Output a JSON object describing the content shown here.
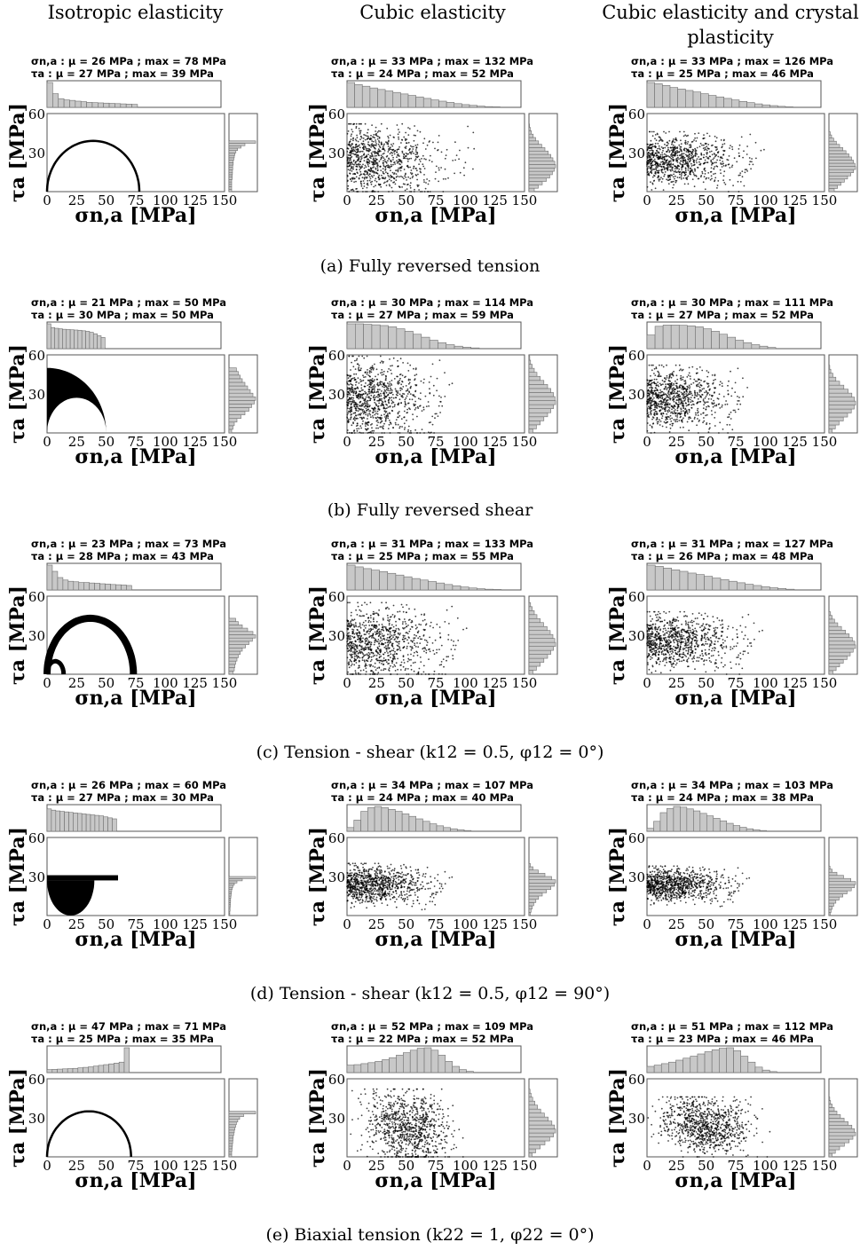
{
  "column_titles": [
    "Isotropic elasticity",
    "Cubic elasticity",
    "Cubic elasticity and crystal plasticity"
  ],
  "captions": [
    "(a) Fully reversed tension",
    "(b) Fully reversed shear",
    "(c) Tension - shear (k12 = 0.5, φ12 = 0°)",
    "(d) Tension - shear (k12 = 0.5, φ12 = 90°)",
    "(e) Biaxial tension (k22 = 1, φ22 = 0°)"
  ],
  "chart_data": [
    {
      "type": "scatter",
      "row": "a",
      "column": "Isotropic elasticity",
      "shape": "arc",
      "xlabel": "σn,a [MPa]",
      "ylabel": "τa [MPa]",
      "xlim": [
        0,
        150
      ],
      "ylim": [
        0,
        60
      ],
      "xticks": [
        0,
        25,
        50,
        75,
        100,
        125,
        150
      ],
      "yticks": [
        30,
        60
      ],
      "stats": {
        "sigma_label": "σn,a : μ = 26 MPa ; max = 78 MPa",
        "tau_label": "τa : μ = 27 MPa ; max = 39 MPa",
        "sigma_mean": 26,
        "sigma_max": 78,
        "tau_mean": 27,
        "tau_max": 39
      },
      "hist_sigma": [
        1.0,
        0.55,
        0.35,
        0.3,
        0.28,
        0.25,
        0.23,
        0.2,
        0.19,
        0.18,
        0.17,
        0.16,
        0.15,
        0.14,
        0.13,
        0.12
      ],
      "hist_tau": [
        0.1,
        0.1,
        0.1,
        0.1,
        0.1,
        0.12,
        0.12,
        0.13,
        0.13,
        0.14,
        0.14,
        0.16,
        0.16,
        0.18,
        0.2,
        0.22,
        0.26,
        0.32,
        0.45,
        0.6,
        1.0
      ]
    },
    {
      "type": "scatter",
      "row": "a",
      "column": "Cubic elasticity",
      "shape": "cloud",
      "xlabel": "σn,a [MPa]",
      "ylabel": "τa [MPa]",
      "xlim": [
        0,
        150
      ],
      "ylim": [
        0,
        60
      ],
      "xticks": [
        0,
        25,
        50,
        75,
        100,
        125,
        150
      ],
      "yticks": [
        30,
        60
      ],
      "stats": {
        "sigma_label": "σn,a : μ = 33 MPa ; max = 132 MPa",
        "tau_label": "τa : μ = 24 MPa ; max = 52 MPa",
        "sigma_mean": 33,
        "sigma_max": 132,
        "tau_mean": 24,
        "tau_max": 52
      },
      "hist_sigma": [
        1.0,
        0.92,
        0.85,
        0.78,
        0.72,
        0.66,
        0.6,
        0.54,
        0.48,
        0.42,
        0.36,
        0.3,
        0.25,
        0.2,
        0.15,
        0.11,
        0.08,
        0.05,
        0.03,
        0.02
      ],
      "hist_tau": [
        0.2,
        0.35,
        0.5,
        0.65,
        0.78,
        0.88,
        0.95,
        1.0,
        0.97,
        0.9,
        0.82,
        0.72,
        0.6,
        0.48,
        0.36,
        0.25,
        0.16,
        0.09,
        0.05,
        0.02
      ]
    },
    {
      "type": "scatter",
      "row": "a",
      "column": "Cubic elasticity and crystal plasticity",
      "shape": "cloud",
      "xlabel": "σn,a [MPa]",
      "ylabel": "τa [MPa]",
      "xlim": [
        0,
        150
      ],
      "ylim": [
        0,
        60
      ],
      "xticks": [
        0,
        25,
        50,
        75,
        100,
        125,
        150
      ],
      "yticks": [
        30,
        60
      ],
      "stats": {
        "sigma_label": "σn,a : μ = 33 MPa ; max = 126 MPa",
        "tau_label": "τa : μ = 25 MPa ; max = 46 MPa",
        "sigma_mean": 33,
        "sigma_max": 126,
        "tau_mean": 25,
        "tau_max": 46
      },
      "hist_sigma": [
        1.0,
        0.95,
        0.88,
        0.8,
        0.74,
        0.68,
        0.62,
        0.55,
        0.48,
        0.42,
        0.36,
        0.3,
        0.24,
        0.19,
        0.14,
        0.1,
        0.07,
        0.04,
        0.02
      ],
      "hist_tau": [
        0.2,
        0.32,
        0.45,
        0.58,
        0.7,
        0.82,
        0.92,
        1.0,
        0.98,
        0.92,
        0.85,
        0.75,
        0.64,
        0.52,
        0.4,
        0.28,
        0.18,
        0.1,
        0.05
      ]
    },
    {
      "type": "scatter",
      "row": "b",
      "column": "Isotropic elasticity",
      "shape": "ring",
      "xlabel": "σn,a [MPa]",
      "ylabel": "τa [MPa]",
      "xlim": [
        0,
        150
      ],
      "ylim": [
        0,
        60
      ],
      "xticks": [
        0,
        25,
        50,
        75,
        100,
        125,
        150
      ],
      "yticks": [
        30,
        60
      ],
      "stats": {
        "sigma_label": "σn,a : μ = 21 MPa ; max = 50 MPa",
        "tau_label": "τa : μ = 30 MPa ; max = 50 MPa",
        "sigma_mean": 21,
        "sigma_max": 50,
        "tau_mean": 30,
        "tau_max": 50
      },
      "hist_sigma": [
        1.0,
        0.85,
        0.82,
        0.8,
        0.78,
        0.77,
        0.76,
        0.75,
        0.74,
        0.72,
        0.7,
        0.66,
        0.6,
        0.52,
        0.45
      ],
      "hist_tau": [
        0.1,
        0.15,
        0.2,
        0.3,
        0.45,
        0.6,
        0.75,
        0.85,
        0.95,
        1.0,
        0.9,
        0.8,
        0.7,
        0.6,
        0.5,
        0.42,
        0.35,
        0.28
      ]
    },
    {
      "type": "scatter",
      "row": "b",
      "column": "Cubic elasticity",
      "shape": "cloud",
      "xlabel": "σn,a [MPa]",
      "ylabel": "τa [MPa]",
      "xlim": [
        0,
        150
      ],
      "ylim": [
        0,
        60
      ],
      "xticks": [
        0,
        25,
        50,
        75,
        100,
        125,
        150
      ],
      "yticks": [
        30,
        60
      ],
      "stats": {
        "sigma_label": "σn,a : μ = 30 MPa ; max = 114 MPa",
        "tau_label": "τa : μ = 27 MPa ; max = 59 MPa",
        "sigma_mean": 30,
        "sigma_max": 114,
        "tau_mean": 27,
        "tau_max": 59
      },
      "hist_sigma": [
        1.0,
        1.0,
        0.98,
        0.96,
        0.93,
        0.88,
        0.8,
        0.7,
        0.58,
        0.46,
        0.34,
        0.24,
        0.16,
        0.1,
        0.06,
        0.03
      ],
      "hist_tau": [
        0.15,
        0.28,
        0.42,
        0.56,
        0.7,
        0.82,
        0.92,
        1.0,
        0.98,
        0.92,
        0.82,
        0.7,
        0.56,
        0.42,
        0.3,
        0.2,
        0.12,
        0.06,
        0.03
      ]
    },
    {
      "type": "scatter",
      "row": "b",
      "column": "Cubic elasticity and crystal plasticity",
      "shape": "cloud",
      "xlabel": "σn,a [MPa]",
      "ylabel": "τa [MPa]",
      "xlim": [
        0,
        150
      ],
      "ylim": [
        0,
        60
      ],
      "xticks": [
        0,
        25,
        50,
        75,
        100,
        125,
        150
      ],
      "yticks": [
        30,
        60
      ],
      "stats": {
        "sigma_label": "σn,a : μ = 30 MPa ; max = 111 MPa",
        "tau_label": "τa : μ = 27 MPa ; max = 52 MPa",
        "sigma_mean": 30,
        "sigma_max": 111,
        "tau_mean": 27,
        "tau_max": 52
      },
      "hist_sigma": [
        0.55,
        0.9,
        0.95,
        0.95,
        0.94,
        0.92,
        0.88,
        0.8,
        0.7,
        0.58,
        0.46,
        0.34,
        0.24,
        0.16,
        0.1,
        0.05
      ],
      "hist_tau": [
        0.12,
        0.24,
        0.38,
        0.54,
        0.7,
        0.84,
        0.95,
        1.0,
        0.96,
        0.86,
        0.72,
        0.56,
        0.4,
        0.26,
        0.15,
        0.07,
        0.03
      ]
    },
    {
      "type": "scatter",
      "row": "c",
      "column": "Isotropic elasticity",
      "shape": "two-arcs",
      "xlabel": "σn,a [MPa]",
      "ylabel": "τa [MPa]",
      "xlim": [
        0,
        150
      ],
      "ylim": [
        0,
        60
      ],
      "xticks": [
        0,
        25,
        50,
        75,
        100,
        125,
        150
      ],
      "yticks": [
        30,
        60
      ],
      "stats": {
        "sigma_label": "σn,a : μ = 23 MPa ; max = 73 MPa",
        "tau_label": "τa : μ = 28 MPa ; max = 43 MPa",
        "sigma_mean": 23,
        "sigma_max": 73,
        "tau_mean": 28,
        "tau_max": 43
      },
      "hist_sigma": [
        1.0,
        0.75,
        0.5,
        0.4,
        0.35,
        0.33,
        0.3,
        0.3,
        0.28,
        0.27,
        0.25,
        0.24,
        0.22,
        0.21,
        0.2,
        0.18
      ],
      "hist_tau": [
        0.15,
        0.2,
        0.22,
        0.25,
        0.3,
        0.35,
        0.42,
        0.5,
        0.62,
        0.75,
        0.88,
        1.0,
        0.9,
        0.7,
        0.5,
        0.35,
        0.25
      ]
    },
    {
      "type": "scatter",
      "row": "c",
      "column": "Cubic elasticity",
      "shape": "cloud",
      "xlabel": "σn,a [MPa]",
      "ylabel": "τa [MPa]",
      "xlim": [
        0,
        150
      ],
      "ylim": [
        0,
        60
      ],
      "xticks": [
        0,
        25,
        50,
        75,
        100,
        125,
        150
      ],
      "yticks": [
        30,
        60
      ],
      "stats": {
        "sigma_label": "σn,a : μ = 31 MPa ; max = 133 MPa",
        "tau_label": "τa : μ = 25 MPa ; max = 55 MPa",
        "sigma_mean": 31,
        "sigma_max": 133,
        "tau_mean": 25,
        "tau_max": 55
      },
      "hist_sigma": [
        1.0,
        0.93,
        0.86,
        0.8,
        0.74,
        0.67,
        0.6,
        0.53,
        0.46,
        0.4,
        0.34,
        0.28,
        0.22,
        0.17,
        0.12,
        0.08,
        0.05,
        0.03,
        0.02
      ],
      "hist_tau": [
        0.15,
        0.28,
        0.42,
        0.56,
        0.7,
        0.82,
        0.92,
        1.0,
        0.97,
        0.9,
        0.8,
        0.68,
        0.55,
        0.42,
        0.3,
        0.2,
        0.12,
        0.06
      ]
    },
    {
      "type": "scatter",
      "row": "c",
      "column": "Cubic elasticity and crystal plasticity",
      "shape": "cloud",
      "xlabel": "σn,a [MPa]",
      "ylabel": "τa [MPa]",
      "xlim": [
        0,
        150
      ],
      "ylim": [
        0,
        60
      ],
      "xticks": [
        0,
        25,
        50,
        75,
        100,
        125,
        150
      ],
      "yticks": [
        30,
        60
      ],
      "stats": {
        "sigma_label": "σn,a : μ = 31 MPa ; max = 127 MPa",
        "tau_label": "τa : μ = 26 MPa ; max = 48 MPa",
        "sigma_mean": 31,
        "sigma_max": 127,
        "tau_mean": 26,
        "tau_max": 48
      },
      "hist_sigma": [
        1.0,
        0.95,
        0.88,
        0.81,
        0.75,
        0.68,
        0.62,
        0.55,
        0.48,
        0.42,
        0.35,
        0.29,
        0.23,
        0.18,
        0.13,
        0.09,
        0.06,
        0.03
      ],
      "hist_tau": [
        0.15,
        0.27,
        0.4,
        0.54,
        0.68,
        0.8,
        0.91,
        1.0,
        0.97,
        0.88,
        0.76,
        0.62,
        0.47,
        0.33,
        0.21,
        0.12,
        0.06
      ]
    },
    {
      "type": "scatter",
      "row": "d",
      "column": "Isotropic elasticity",
      "shape": "band",
      "xlabel": "σn,a [MPa]",
      "ylabel": "τa [MPa]",
      "xlim": [
        0,
        150
      ],
      "ylim": [
        0,
        60
      ],
      "xticks": [
        0,
        25,
        50,
        75,
        100,
        125,
        150
      ],
      "yticks": [
        30,
        60
      ],
      "stats": {
        "sigma_label": "σn,a : μ = 26 MPa ; max = 60 MPa",
        "tau_label": "τa : μ = 27 MPa ; max = 30 MPa",
        "sigma_mean": 26,
        "sigma_max": 60,
        "tau_mean": 27,
        "tau_max": 30
      },
      "hist_sigma": [
        0.9,
        0.85,
        0.82,
        0.8,
        0.78,
        0.76,
        0.74,
        0.72,
        0.7,
        0.68,
        0.66,
        0.64,
        0.62,
        0.58,
        0.54,
        0.5
      ],
      "hist_tau": [
        0.03,
        0.03,
        0.04,
        0.04,
        0.05,
        0.05,
        0.06,
        0.06,
        0.07,
        0.08,
        0.09,
        0.1,
        0.12,
        0.15,
        0.2,
        0.3,
        0.5,
        1.0
      ]
    },
    {
      "type": "scatter",
      "row": "d",
      "column": "Cubic elasticity",
      "shape": "cloud",
      "xlabel": "σn,a [MPa]",
      "ylabel": "τa [MPa]",
      "xlim": [
        0,
        150
      ],
      "ylim": [
        0,
        60
      ],
      "xticks": [
        0,
        25,
        50,
        75,
        100,
        125,
        150
      ],
      "yticks": [
        30,
        60
      ],
      "stats": {
        "sigma_label": "σn,a : μ = 34 MPa ; max = 107 MPa",
        "tau_label": "τa : μ = 24 MPa ; max = 40 MPa",
        "sigma_mean": 34,
        "sigma_max": 107,
        "tau_mean": 24,
        "tau_max": 40
      },
      "hist_sigma": [
        0.15,
        0.45,
        0.8,
        0.95,
        1.0,
        0.95,
        0.88,
        0.8,
        0.7,
        0.6,
        0.5,
        0.4,
        0.3,
        0.22,
        0.15,
        0.1,
        0.06,
        0.03
      ],
      "hist_tau": [
        0.05,
        0.08,
        0.12,
        0.18,
        0.26,
        0.36,
        0.5,
        0.66,
        0.82,
        0.95,
        1.0,
        0.85,
        0.6,
        0.35,
        0.15,
        0.05
      ]
    },
    {
      "type": "scatter",
      "row": "d",
      "column": "Cubic elasticity and crystal plasticity",
      "shape": "cloud",
      "xlabel": "σn,a [MPa]",
      "ylabel": "τa [MPa]",
      "xlim": [
        0,
        150
      ],
      "ylim": [
        0,
        60
      ],
      "xticks": [
        0,
        25,
        50,
        75,
        100,
        125,
        150
      ],
      "yticks": [
        30,
        60
      ],
      "stats": {
        "sigma_label": "σn,a : μ = 34 MPa ; max = 103 MPa",
        "tau_label": "τa : μ = 24 MPa ; max = 38 MPa",
        "sigma_mean": 34,
        "sigma_max": 103,
        "tau_mean": 24,
        "tau_max": 38
      },
      "hist_sigma": [
        0.12,
        0.4,
        0.75,
        0.92,
        1.0,
        0.97,
        0.9,
        0.82,
        0.72,
        0.62,
        0.52,
        0.42,
        0.32,
        0.23,
        0.16,
        0.1,
        0.06,
        0.03
      ],
      "hist_tau": [
        0.05,
        0.08,
        0.12,
        0.18,
        0.26,
        0.38,
        0.52,
        0.68,
        0.84,
        0.96,
        1.0,
        0.82,
        0.55,
        0.3,
        0.12,
        0.04
      ]
    },
    {
      "type": "scatter",
      "row": "e",
      "column": "Isotropic elasticity",
      "shape": "arc",
      "xlabel": "σn,a [MPa]",
      "ylabel": "τa [MPa]",
      "xlim": [
        0,
        150
      ],
      "ylim": [
        0,
        60
      ],
      "xticks": [
        0,
        25,
        50,
        75,
        100,
        125,
        150
      ],
      "yticks": [
        30,
        60
      ],
      "stats": {
        "sigma_label": "σn,a : μ = 47 MPa ; max = 71 MPa",
        "tau_label": "τa : μ = 25 MPa ; max = 35 MPa",
        "sigma_mean": 47,
        "sigma_max": 71,
        "tau_mean": 25,
        "tau_max": 35
      },
      "hist_sigma": [
        0.12,
        0.13,
        0.14,
        0.15,
        0.16,
        0.17,
        0.19,
        0.21,
        0.23,
        0.26,
        0.29,
        0.32,
        0.35,
        0.38,
        0.42,
        1.0
      ],
      "hist_tau": [
        0.1,
        0.1,
        0.11,
        0.12,
        0.13,
        0.14,
        0.15,
        0.16,
        0.18,
        0.2,
        0.22,
        0.25,
        0.28,
        0.33,
        0.4,
        0.55,
        1.0
      ]
    },
    {
      "type": "scatter",
      "row": "e",
      "column": "Cubic elasticity",
      "shape": "cloud-right",
      "xlabel": "σn,a [MPa]",
      "ylabel": "τa [MPa]",
      "xlim": [
        0,
        150
      ],
      "ylim": [
        0,
        60
      ],
      "xticks": [
        0,
        25,
        50,
        75,
        100,
        125,
        150
      ],
      "yticks": [
        30,
        60
      ],
      "stats": {
        "sigma_label": "σn,a : μ = 52 MPa ; max = 109 MPa",
        "tau_label": "τa : μ = 22 MPa ; max = 52 MPa",
        "sigma_mean": 52,
        "sigma_max": 109,
        "tau_mean": 22,
        "tau_max": 52
      },
      "hist_sigma": [
        0.3,
        0.32,
        0.36,
        0.4,
        0.45,
        0.52,
        0.6,
        0.7,
        0.8,
        0.9,
        0.98,
        1.0,
        0.9,
        0.7,
        0.45,
        0.25,
        0.12,
        0.05
      ],
      "hist_tau": [
        0.12,
        0.25,
        0.42,
        0.6,
        0.78,
        0.92,
        1.0,
        0.96,
        0.86,
        0.72,
        0.58,
        0.44,
        0.32,
        0.22,
        0.14,
        0.08,
        0.04
      ]
    },
    {
      "type": "scatter",
      "row": "e",
      "column": "Cubic elasticity and crystal plasticity",
      "shape": "cloud-right",
      "xlabel": "σn,a [MPa]",
      "ylabel": "τa [MPa]",
      "xlim": [
        0,
        150
      ],
      "ylim": [
        0,
        60
      ],
      "xticks": [
        0,
        25,
        50,
        75,
        100,
        125,
        150
      ],
      "yticks": [
        30,
        60
      ],
      "stats": {
        "sigma_label": "σn,a : μ = 51 MPa ; max = 112 MPa",
        "tau_label": "τa : μ = 23 MPa ; max = 46 MPa",
        "sigma_mean": 51,
        "sigma_max": 112,
        "tau_mean": 23,
        "tau_max": 46
      },
      "hist_sigma": [
        0.25,
        0.3,
        0.36,
        0.42,
        0.5,
        0.58,
        0.66,
        0.75,
        0.84,
        0.92,
        0.98,
        1.0,
        0.88,
        0.66,
        0.42,
        0.22,
        0.1,
        0.04
      ],
      "hist_tau": [
        0.12,
        0.24,
        0.4,
        0.58,
        0.76,
        0.9,
        1.0,
        0.96,
        0.86,
        0.72,
        0.57,
        0.43,
        0.3,
        0.2,
        0.12,
        0.06,
        0.03
      ]
    }
  ]
}
